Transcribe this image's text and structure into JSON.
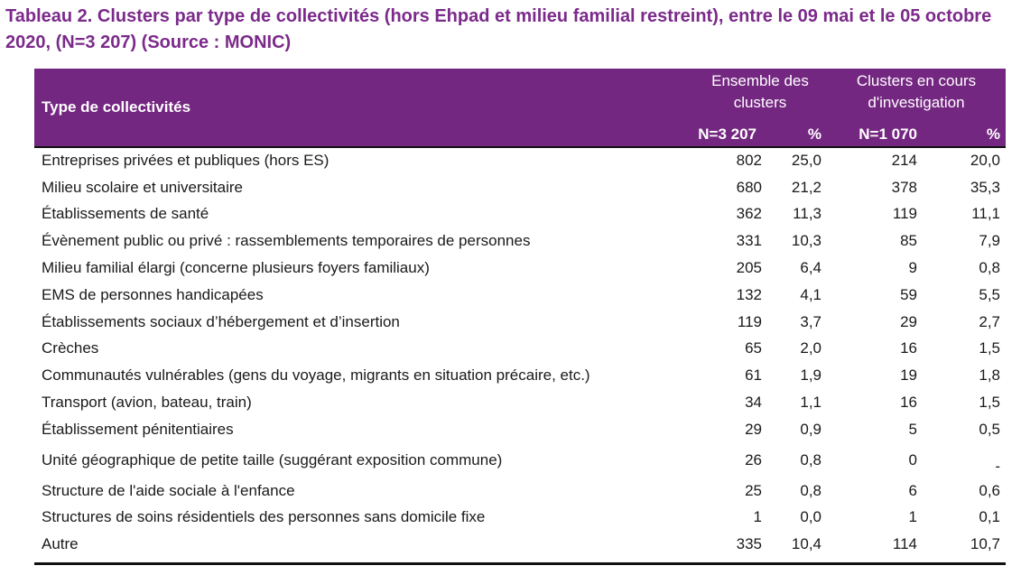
{
  "title": "Tableau 2. Clusters par type de collectivités (hors Ehpad et milieu familial restreint), entre le 09 mai et le 05 octobre 2020, (N=3 207) (Source : MONIC)",
  "colors": {
    "title": "#7b2a8a",
    "header_bg": "#742781",
    "header_text": "#ffffff"
  },
  "header": {
    "type_label": "Type de collectivités",
    "group1_label": "Ensemble des clusters",
    "group2_label": "Clusters en cours d'investigation",
    "group1_n": "N=3 207",
    "group1_pct": "%",
    "group2_n": "N=1 070",
    "group2_pct": "%"
  },
  "rows": [
    {
      "type": "Entreprises privées et publiques (hors ES)",
      "n1": "802",
      "p1": "25,0",
      "n2": "214",
      "p2": "20,0"
    },
    {
      "type": "Milieu scolaire et universitaire",
      "n1": "680",
      "p1": "21,2",
      "n2": "378",
      "p2": "35,3"
    },
    {
      "type": "Établissements de santé",
      "n1": "362",
      "p1": "11,3",
      "n2": "119",
      "p2": "11,1"
    },
    {
      "type": "Évènement public ou privé : rassemblements temporaires de personnes",
      "n1": "331",
      "p1": "10,3",
      "n2": "85",
      "p2": "7,9"
    },
    {
      "type": "Milieu familial élargi (concerne plusieurs foyers familiaux)",
      "n1": "205",
      "p1": "6,4",
      "n2": "9",
      "p2": "0,8"
    },
    {
      "type": "EMS de personnes handicapées",
      "n1": "132",
      "p1": "4,1",
      "n2": "59",
      "p2": "5,5"
    },
    {
      "type": "Établissements sociaux d’hébergement et d’insertion",
      "n1": "119",
      "p1": "3,7",
      "n2": "29",
      "p2": "2,7"
    },
    {
      "type": "Crèches",
      "n1": "65",
      "p1": "2,0",
      "n2": "16",
      "p2": "1,5"
    },
    {
      "type": "Communautés vulnérables (gens du voyage, migrants en situation précaire, etc.)",
      "n1": "61",
      "p1": "1,9",
      "n2": "19",
      "p2": "1,8"
    },
    {
      "type": "Transport (avion, bateau, train)",
      "n1": "34",
      "p1": "1,1",
      "n2": "16",
      "p2": "1,5"
    },
    {
      "type": "Établissement pénitentiaires",
      "n1": "29",
      "p1": "0,9",
      "n2": "5",
      "p2": "0,5"
    },
    {
      "type": "Unité géographique de petite taille (suggérant exposition commune)",
      "n1": "26",
      "p1": "0,8",
      "n2": "0",
      "p2": "-"
    },
    {
      "type": "Structure de l'aide sociale à l'enfance",
      "n1": "25",
      "p1": "0,8",
      "n2": "6",
      "p2": "0,6"
    },
    {
      "type": "Structures de soins résidentiels des personnes sans domicile fixe",
      "n1": "1",
      "p1": "0,0",
      "n2": "1",
      "p2": "0,1"
    },
    {
      "type": "Autre",
      "n1": "335",
      "p1": "10,4",
      "n2": "114",
      "p2": "10,7"
    }
  ]
}
